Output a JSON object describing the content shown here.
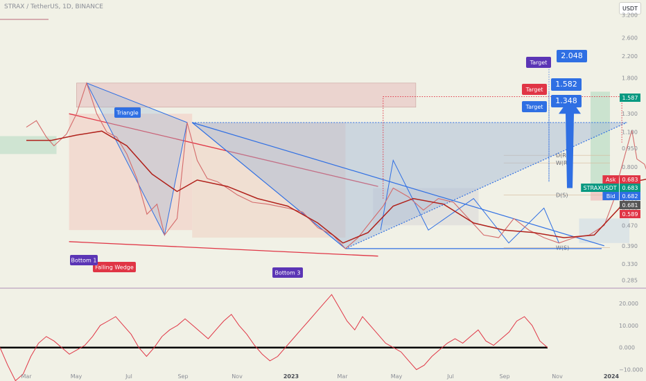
{
  "header": {
    "symbol_title": "STRAX / TetherUS, 1D, BINANCE",
    "currency": "USDT"
  },
  "colors": {
    "background": "#f1f1e6",
    "ema": "#b0201a",
    "price": "#d46a6a",
    "triangle": "#2f6fe3",
    "wedge": "#e03545",
    "bottom_label": "#5b35b5",
    "target_label_red": "#e03545",
    "target_label_blue": "#2f6fe3",
    "target_label_purple": "#5b35b5",
    "target_value": "#2f6fe3",
    "rsi_line": "#e03545",
    "green_box": "#089981"
  },
  "chart_data": [
    {
      "type": "line",
      "name": "price-chart",
      "x_ticks": [
        "Mar",
        "May",
        "Jul",
        "Sep",
        "Nov",
        "2023",
        "Mar",
        "May",
        "Jul",
        "Sep",
        "Nov",
        "2024"
      ],
      "y_scale": "log",
      "ylim": [
        0.27,
        3.4
      ],
      "y_ticks": [
        3.2,
        2.6,
        2.2,
        1.8,
        1.5,
        1.3,
        1.1,
        0.95,
        0.8,
        0.7,
        0.6,
        0.55,
        0.47,
        0.39,
        0.33,
        0.285
      ],
      "y_tick_labels": [
        "3.200",
        "2.600",
        "2.200",
        "1.800",
        "1.500",
        "1.300",
        "1.100",
        "0.950",
        "0.800",
        "0.700",
        "0.600",
        "0.550",
        "0.470",
        "0.390",
        "0.330",
        "0.285"
      ],
      "series": [
        {
          "name": "STRAXUSDT",
          "style": "line",
          "points": [
            [
              0.0,
              1.15
            ],
            [
              0.2,
              1.22
            ],
            [
              0.4,
              1.05
            ],
            [
              0.55,
              0.97
            ],
            [
              0.8,
              1.08
            ],
            [
              1.0,
              1.3
            ],
            [
              1.2,
              1.72
            ],
            [
              1.4,
              1.3
            ],
            [
              1.6,
              1.1
            ],
            [
              1.8,
              1.05
            ],
            [
              2.0,
              0.9
            ],
            [
              2.2,
              0.72
            ],
            [
              2.4,
              0.52
            ],
            [
              2.6,
              0.57
            ],
            [
              2.75,
              0.43
            ],
            [
              3.0,
              0.5
            ],
            [
              3.2,
              1.2
            ],
            [
              3.4,
              0.85
            ],
            [
              3.6,
              0.72
            ],
            [
              3.8,
              0.7
            ],
            [
              4.0,
              0.66
            ],
            [
              4.2,
              0.62
            ],
            [
              4.5,
              0.58
            ],
            [
              4.8,
              0.57
            ],
            [
              5.2,
              0.55
            ],
            [
              5.5,
              0.53
            ],
            [
              5.8,
              0.46
            ],
            [
              6.1,
              0.43
            ],
            [
              6.35,
              0.38
            ],
            [
              6.6,
              0.42
            ],
            [
              6.9,
              0.5
            ],
            [
              7.1,
              0.56
            ],
            [
              7.3,
              0.66
            ],
            [
              7.6,
              0.61
            ],
            [
              7.9,
              0.54
            ],
            [
              8.2,
              0.6
            ],
            [
              8.5,
              0.58
            ],
            [
              8.8,
              0.5
            ],
            [
              9.1,
              0.43
            ],
            [
              9.4,
              0.42
            ],
            [
              9.7,
              0.5
            ],
            [
              10.0,
              0.45
            ],
            [
              10.3,
              0.42
            ],
            [
              10.6,
              0.4
            ],
            [
              10.9,
              0.42
            ],
            [
              11.2,
              0.43
            ],
            [
              11.5,
              0.47
            ],
            [
              11.7,
              0.6
            ],
            [
              11.8,
              0.74
            ],
            [
              11.95,
              0.95
            ],
            [
              12.05,
              1.12
            ],
            [
              12.15,
              0.86
            ],
            [
              12.3,
              0.82
            ],
            [
              12.4,
              0.72
            ]
          ]
        },
        {
          "name": "EMA",
          "style": "line",
          "points": [
            [
              0.0,
              1.02
            ],
            [
              0.5,
              1.02
            ],
            [
              1.0,
              1.07
            ],
            [
              1.5,
              1.11
            ],
            [
              2.0,
              0.97
            ],
            [
              2.5,
              0.75
            ],
            [
              3.0,
              0.64
            ],
            [
              3.4,
              0.71
            ],
            [
              4.0,
              0.67
            ],
            [
              4.6,
              0.6
            ],
            [
              5.2,
              0.56
            ],
            [
              5.8,
              0.48
            ],
            [
              6.3,
              0.4
            ],
            [
              6.8,
              0.44
            ],
            [
              7.3,
              0.56
            ],
            [
              7.7,
              0.6
            ],
            [
              8.3,
              0.57
            ],
            [
              8.9,
              0.48
            ],
            [
              9.5,
              0.45
            ],
            [
              10.1,
              0.44
            ],
            [
              10.7,
              0.42
            ],
            [
              11.3,
              0.43
            ],
            [
              11.8,
              0.55
            ],
            [
              12.1,
              0.7
            ],
            [
              12.4,
              0.72
            ]
          ]
        }
      ],
      "annotations": {
        "patterns": [
          "Triangle",
          "Falling Wedge"
        ],
        "bottoms": [
          "Bottom 1",
          "Bottom 3"
        ],
        "targets": [
          {
            "label": "Target",
            "value": "2.048"
          },
          {
            "label": "Target",
            "value": "1.582"
          },
          {
            "label": "Target",
            "value": "1.348"
          }
        ],
        "levels": [
          "D(R)",
          "W(R)",
          "D(S)",
          "W(S)"
        ]
      },
      "price_tags": [
        {
          "label": "",
          "value": "1.587"
        },
        {
          "label": "Ask",
          "value": "0.683"
        },
        {
          "label": "STRAXUSDT",
          "value": "0.683"
        },
        {
          "label": "Bid",
          "value": "0.682"
        },
        {
          "label": "",
          "value": "0.681"
        },
        {
          "label": "",
          "value": "0.589"
        }
      ]
    },
    {
      "type": "line",
      "name": "rsi-panel",
      "ylim": [
        -12,
        25
      ],
      "y_ticks": [
        20,
        10,
        0,
        -10
      ],
      "y_tick_labels": [
        "20.000",
        "10.000",
        "0.000",
        "−10.000"
      ],
      "series": [
        {
          "name": "oscillator",
          "values": [
            0,
            -8,
            -15,
            -12,
            -4,
            2,
            5,
            3,
            0,
            -3,
            -1,
            1,
            5,
            10,
            12,
            14,
            10,
            6,
            0,
            -4,
            0,
            5,
            8,
            10,
            13,
            10,
            7,
            4,
            8,
            12,
            15,
            10,
            6,
            1,
            -3,
            -6,
            -4,
            0,
            4,
            8,
            12,
            16,
            20,
            24,
            18,
            12,
            8,
            14,
            10,
            6,
            2,
            0,
            -2,
            -6,
            -10,
            -8,
            -4,
            -1,
            2,
            4,
            2,
            5,
            8,
            3,
            1,
            4,
            7,
            12,
            14,
            10,
            3,
            0
          ]
        }
      ]
    }
  ]
}
